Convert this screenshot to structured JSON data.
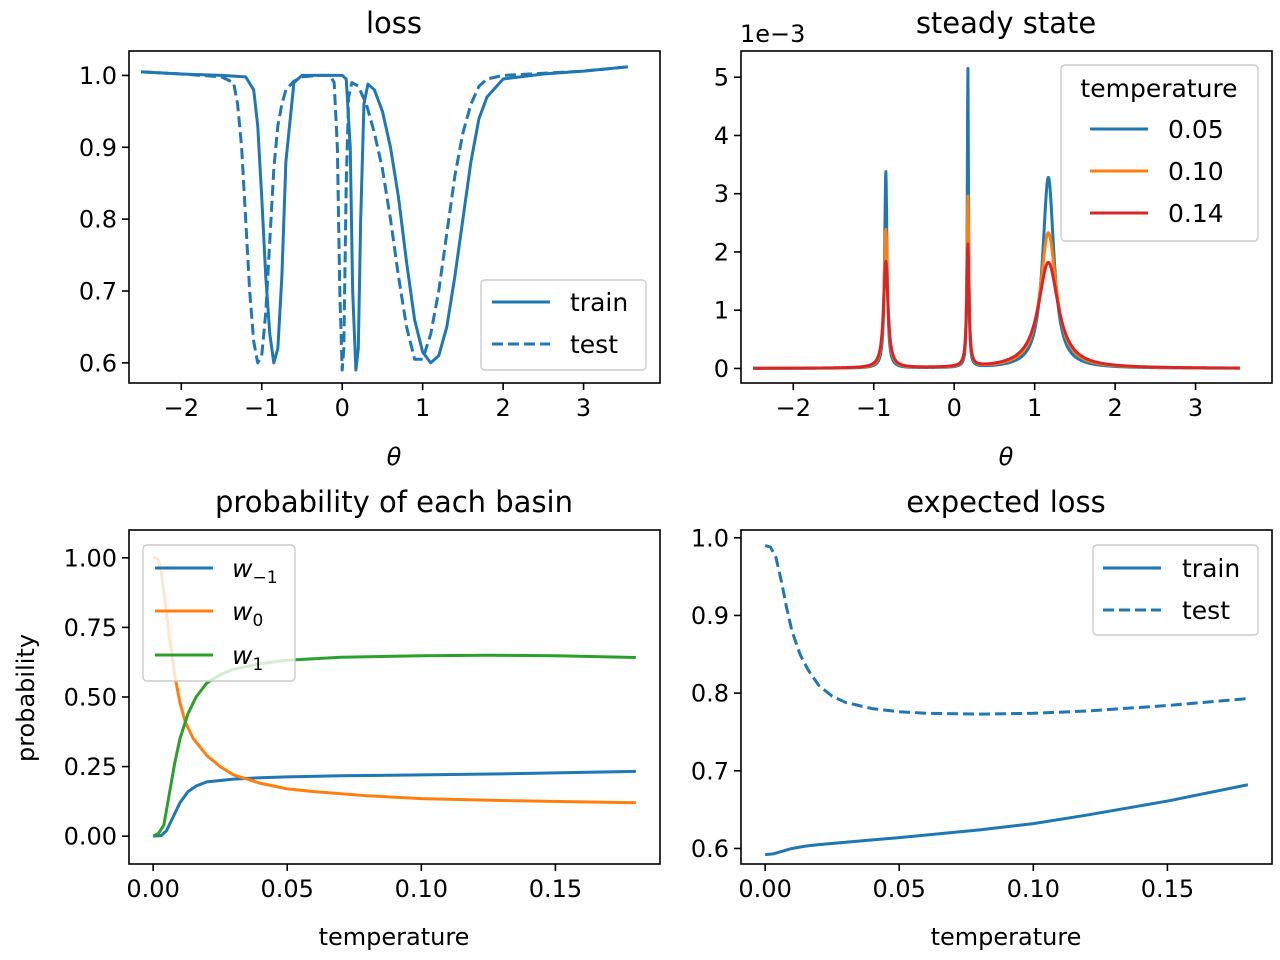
{
  "colors": {
    "train": "#1f77b4",
    "test": "#1f77b4",
    "t005": "#1f77b4",
    "t010": "#ff7f0e",
    "t014": "#d62728",
    "w_m1": "#1f77b4",
    "w_0": "#ff7f0e",
    "w_1": "#2ca02c"
  },
  "chart_data": [
    {
      "id": "loss",
      "type": "line",
      "title": "loss",
      "xlabel": "θ",
      "ylabel": "",
      "xlim": [
        -2.65,
        3.95
      ],
      "ylim": [
        0.572,
        1.034
      ],
      "xticks": [
        -2,
        -1,
        0,
        1,
        2,
        3
      ],
      "xtick_labels": [
        "−2",
        "−1",
        "0",
        "1",
        "2",
        "3"
      ],
      "yticks": [
        0.6,
        0.7,
        0.8,
        0.9,
        1.0
      ],
      "ytick_labels": [
        "0.6",
        "0.7",
        "0.8",
        "0.9",
        "1.0"
      ],
      "legend": {
        "position": "lower-right",
        "entries": [
          "train",
          "test"
        ]
      },
      "series": [
        {
          "name": "train",
          "style": "solid",
          "x": [
            -2.5,
            -2.0,
            -1.5,
            -1.2,
            -1.1,
            -1.05,
            -1.0,
            -0.95,
            -0.9,
            -0.85,
            -0.8,
            -0.75,
            -0.7,
            -0.6,
            -0.5,
            -0.3,
            -0.1,
            0.0,
            0.05,
            0.1,
            0.13,
            0.17,
            0.2,
            0.23,
            0.27,
            0.32,
            0.4,
            0.5,
            0.6,
            0.7,
            0.8,
            0.9,
            1.0,
            1.1,
            1.2,
            1.3,
            1.4,
            1.5,
            1.6,
            1.7,
            1.8,
            2.0,
            2.5,
            3.0,
            3.55
          ],
          "y": [
            1.005,
            1.002,
            1.0,
            0.998,
            0.98,
            0.93,
            0.83,
            0.72,
            0.64,
            0.6,
            0.62,
            0.72,
            0.88,
            0.99,
            1.0,
            1.0,
            1.0,
            1.0,
            0.995,
            0.9,
            0.7,
            0.59,
            0.62,
            0.8,
            0.96,
            0.988,
            0.98,
            0.95,
            0.9,
            0.83,
            0.74,
            0.66,
            0.615,
            0.6,
            0.61,
            0.65,
            0.72,
            0.8,
            0.88,
            0.94,
            0.97,
            0.995,
            1.002,
            1.006,
            1.012
          ]
        },
        {
          "name": "test",
          "style": "dashed",
          "x": [
            -2.5,
            -2.0,
            -1.5,
            -1.35,
            -1.3,
            -1.25,
            -1.2,
            -1.15,
            -1.1,
            -1.05,
            -1.0,
            -0.95,
            -0.9,
            -0.85,
            -0.8,
            -0.75,
            -0.7,
            -0.6,
            -0.5,
            -0.3,
            -0.15,
            -0.1,
            -0.06,
            -0.03,
            0.0,
            0.02,
            0.05,
            0.08,
            0.12,
            0.2,
            0.3,
            0.4,
            0.5,
            0.6,
            0.7,
            0.8,
            0.9,
            1.0,
            1.1,
            1.2,
            1.3,
            1.4,
            1.5,
            1.6,
            1.7,
            1.8,
            2.0,
            2.5,
            3.0,
            3.55
          ],
          "y": [
            1.005,
            1.002,
            0.998,
            0.99,
            0.96,
            0.9,
            0.8,
            0.7,
            0.63,
            0.6,
            0.61,
            0.67,
            0.77,
            0.87,
            0.93,
            0.96,
            0.98,
            0.992,
            0.998,
            1.0,
            1.0,
            0.99,
            0.9,
            0.7,
            0.59,
            0.62,
            0.85,
            0.97,
            0.99,
            0.985,
            0.96,
            0.92,
            0.87,
            0.8,
            0.72,
            0.65,
            0.605,
            0.605,
            0.64,
            0.7,
            0.78,
            0.86,
            0.92,
            0.96,
            0.985,
            0.995,
            1.0,
            1.003,
            1.006,
            1.012
          ]
        }
      ]
    },
    {
      "id": "steady",
      "type": "line",
      "title": "steady state",
      "offset_text": "1e−3",
      "xlabel": "θ",
      "ylabel": "",
      "xlim": [
        -2.65,
        3.95
      ],
      "ylim": [
        -0.25,
        5.45
      ],
      "xticks": [
        -2,
        -1,
        0,
        1,
        2,
        3
      ],
      "xtick_labels": [
        "−2",
        "−1",
        "0",
        "1",
        "2",
        "3"
      ],
      "yticks": [
        0,
        1,
        2,
        3,
        4,
        5
      ],
      "ytick_labels": [
        "0",
        "1",
        "2",
        "3",
        "4",
        "5"
      ],
      "legend": {
        "position": "upper-right",
        "title": "temperature",
        "entries": [
          "0.05",
          "0.10",
          "0.14"
        ]
      },
      "series": [
        {
          "name": "0.05",
          "style": "solid",
          "peaks": [
            {
              "x": -0.85,
              "h": 3.38,
              "w": 0.018
            },
            {
              "x": 0.17,
              "h": 5.15,
              "w": 0.009
            },
            {
              "x": 1.17,
              "h": 3.28,
              "w": 0.085
            }
          ]
        },
        {
          "name": "0.10",
          "style": "solid",
          "peaks": [
            {
              "x": -0.85,
              "h": 2.38,
              "w": 0.026
            },
            {
              "x": 0.17,
              "h": 2.93,
              "w": 0.014
            },
            {
              "x": 1.17,
              "h": 2.33,
              "w": 0.12
            }
          ]
        },
        {
          "name": "0.14",
          "style": "solid",
          "peaks": [
            {
              "x": -0.85,
              "h": 1.83,
              "w": 0.033
            },
            {
              "x": 0.17,
              "h": 2.1,
              "w": 0.017
            },
            {
              "x": 1.17,
              "h": 1.82,
              "w": 0.15
            }
          ]
        }
      ]
    },
    {
      "id": "prob",
      "type": "line",
      "title": "probability of each basin",
      "xlabel": "temperature",
      "ylabel": "probability",
      "xlim": [
        -0.009,
        0.189
      ],
      "ylim": [
        -0.1,
        1.1
      ],
      "xticks": [
        0.0,
        0.05,
        0.1,
        0.15
      ],
      "xtick_labels": [
        "0.00",
        "0.05",
        "0.10",
        "0.15"
      ],
      "yticks": [
        0.0,
        0.25,
        0.5,
        0.75,
        1.0
      ],
      "ytick_labels": [
        "0.00",
        "0.25",
        "0.50",
        "0.75",
        "1.00"
      ],
      "legend": {
        "position": "upper-left",
        "entries": [
          "w−1",
          "w0",
          "w1"
        ]
      },
      "series": [
        {
          "name": "w−1",
          "sub": "−1",
          "style": "solid",
          "x": [
            0.0,
            0.003,
            0.005,
            0.007,
            0.01,
            0.013,
            0.016,
            0.02,
            0.025,
            0.03,
            0.04,
            0.05,
            0.07,
            0.1,
            0.13,
            0.16,
            0.18
          ],
          "y": [
            0.0,
            0.002,
            0.02,
            0.06,
            0.12,
            0.16,
            0.18,
            0.195,
            0.2,
            0.205,
            0.21,
            0.213,
            0.217,
            0.22,
            0.224,
            0.229,
            0.233
          ]
        },
        {
          "name": "w0",
          "sub": "0",
          "style": "solid",
          "x": [
            0.0,
            0.001,
            0.002,
            0.003,
            0.004,
            0.005,
            0.006,
            0.008,
            0.01,
            0.012,
            0.015,
            0.02,
            0.025,
            0.03,
            0.04,
            0.05,
            0.06,
            0.08,
            0.1,
            0.13,
            0.16,
            0.18
          ],
          "y": [
            1.0,
            1.0,
            0.99,
            0.95,
            0.88,
            0.8,
            0.72,
            0.58,
            0.48,
            0.41,
            0.35,
            0.29,
            0.25,
            0.22,
            0.19,
            0.17,
            0.16,
            0.145,
            0.135,
            0.128,
            0.123,
            0.12
          ]
        },
        {
          "name": "w1",
          "sub": "1",
          "style": "solid",
          "x": [
            0.0,
            0.002,
            0.004,
            0.006,
            0.008,
            0.01,
            0.013,
            0.016,
            0.02,
            0.025,
            0.03,
            0.04,
            0.05,
            0.07,
            0.1,
            0.125,
            0.15,
            0.18
          ],
          "y": [
            0.0,
            0.01,
            0.04,
            0.15,
            0.26,
            0.35,
            0.44,
            0.5,
            0.55,
            0.58,
            0.6,
            0.62,
            0.632,
            0.643,
            0.648,
            0.65,
            0.648,
            0.642
          ]
        }
      ]
    },
    {
      "id": "expected",
      "type": "line",
      "title": "expected loss",
      "xlabel": "temperature",
      "ylabel": "",
      "xlim": [
        -0.009,
        0.189
      ],
      "ylim": [
        0.58,
        1.01
      ],
      "xticks": [
        0.0,
        0.05,
        0.1,
        0.15
      ],
      "xtick_labels": [
        "0.00",
        "0.05",
        "0.10",
        "0.15"
      ],
      "yticks": [
        0.6,
        0.7,
        0.8,
        0.9,
        1.0
      ],
      "ytick_labels": [
        "0.6",
        "0.7",
        "0.8",
        "0.9",
        "1.0"
      ],
      "legend": {
        "position": "upper-right",
        "entries": [
          "train",
          "test"
        ]
      },
      "series": [
        {
          "name": "train",
          "style": "solid",
          "x": [
            0.0,
            0.003,
            0.006,
            0.01,
            0.015,
            0.02,
            0.03,
            0.05,
            0.08,
            0.1,
            0.12,
            0.15,
            0.18
          ],
          "y": [
            0.592,
            0.593,
            0.596,
            0.6,
            0.603,
            0.605,
            0.608,
            0.614,
            0.624,
            0.632,
            0.643,
            0.661,
            0.682
          ]
        },
        {
          "name": "test",
          "style": "dashed",
          "x": [
            0.0,
            0.002,
            0.004,
            0.006,
            0.008,
            0.01,
            0.013,
            0.016,
            0.02,
            0.025,
            0.03,
            0.04,
            0.05,
            0.06,
            0.08,
            0.1,
            0.12,
            0.15,
            0.18
          ],
          "y": [
            0.99,
            0.988,
            0.975,
            0.945,
            0.91,
            0.88,
            0.85,
            0.83,
            0.81,
            0.796,
            0.788,
            0.78,
            0.776,
            0.774,
            0.773,
            0.774,
            0.777,
            0.784,
            0.793
          ]
        }
      ]
    }
  ]
}
